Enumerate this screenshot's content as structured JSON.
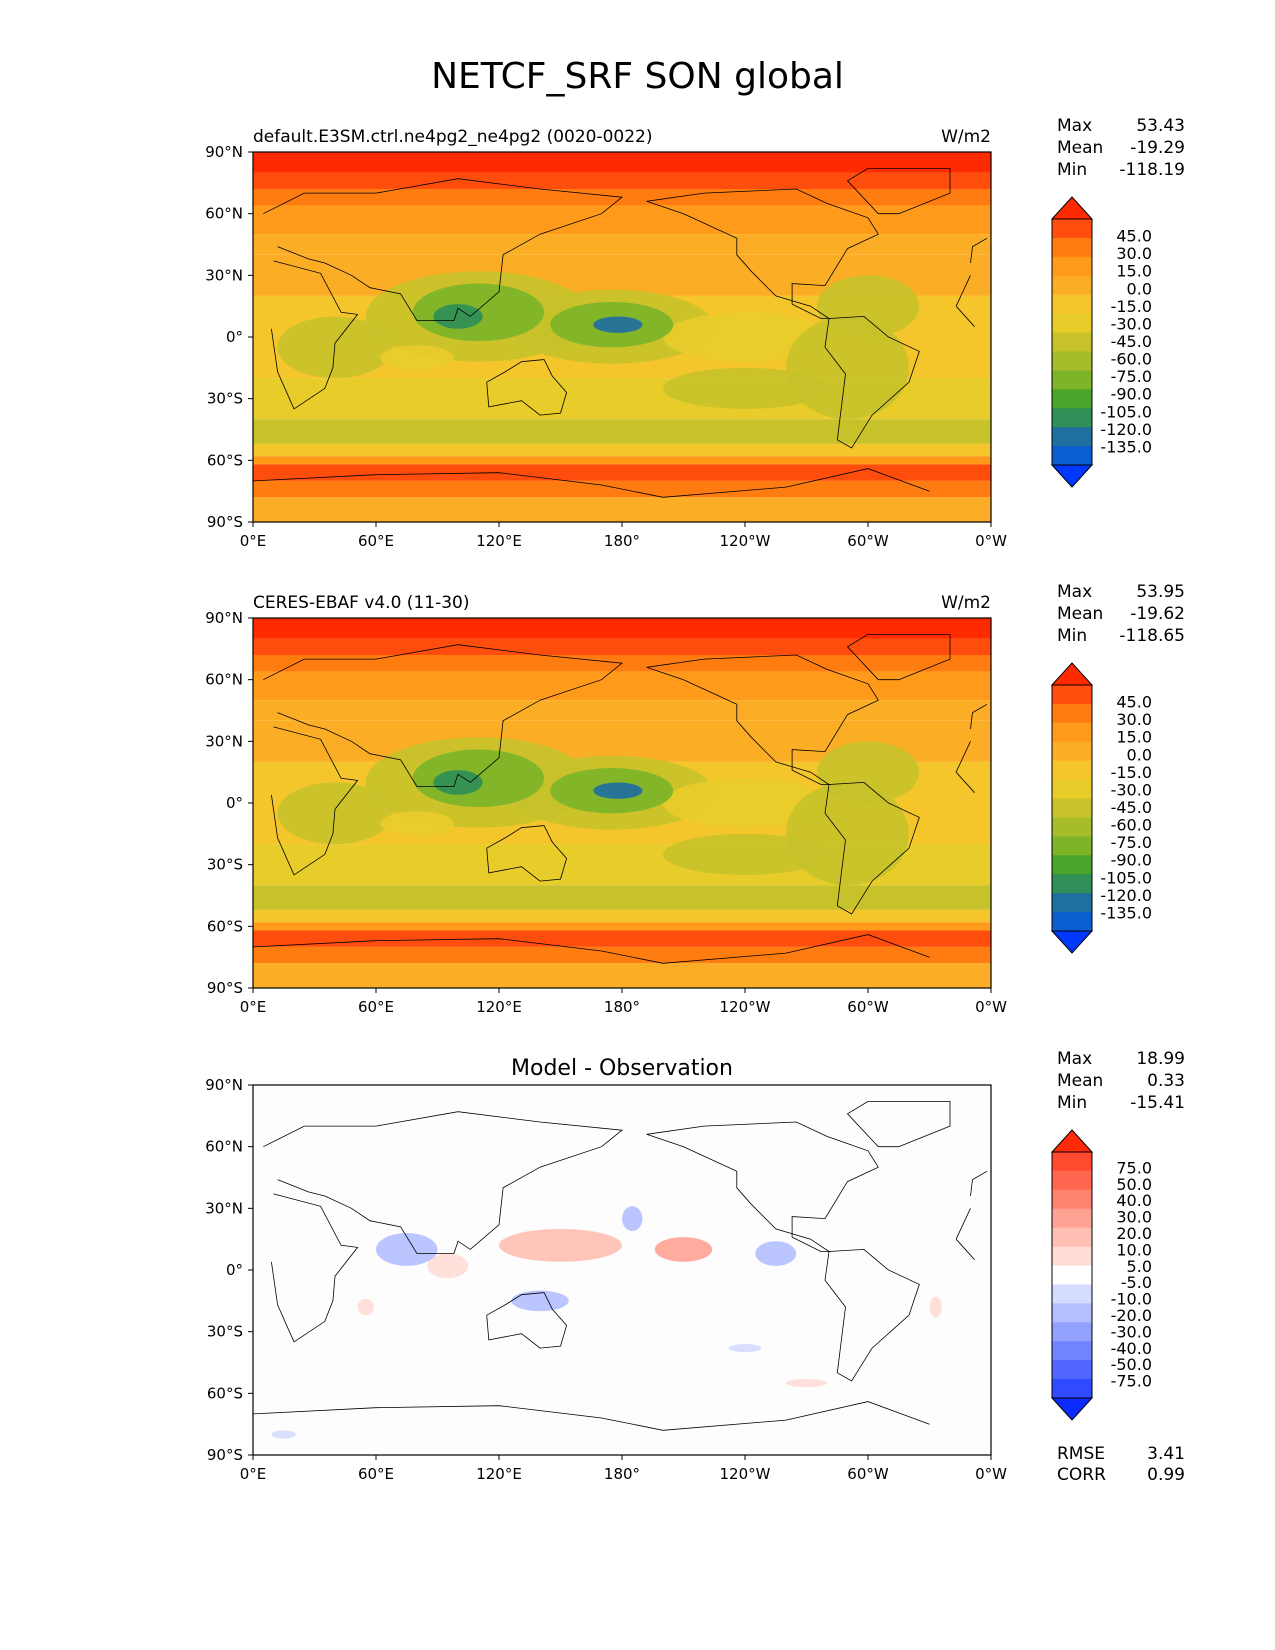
{
  "figure": {
    "title": "NETCF_SRF SON global"
  },
  "lon_ticks": [
    "0°E",
    "60°E",
    "120°E",
    "180°",
    "120°W",
    "60°W",
    "0°W"
  ],
  "lat_ticks": [
    "90°N",
    "60°N",
    "30°N",
    "0°",
    "30°S",
    "60°S",
    "90°S"
  ],
  "panels": [
    {
      "left_title": "default.E3SM.ctrl.ne4pg2_ne4pg2 (0020-0022)",
      "center_title": "",
      "units": "W/m2",
      "stats": [
        {
          "label": "Max",
          "value": "53.43"
        },
        {
          "label": "Mean",
          "value": "-19.29"
        },
        {
          "label": "Min",
          "value": "-118.19"
        }
      ],
      "colorbar_levels": [
        "45.0",
        "30.0",
        "15.0",
        "0.0",
        "-15.0",
        "-30.0",
        "-45.0",
        "-60.0",
        "-75.0",
        "-90.0",
        "-105.0",
        "-120.0",
        "-135.0"
      ],
      "colorbar_colors": [
        "#ff2a00",
        "#ff4d0d",
        "#ff7d10",
        "#ff9a1a",
        "#fbae25",
        "#f5c62b",
        "#e8cc2a",
        "#c8c22a",
        "#a6bd29",
        "#7db428",
        "#4ba52a",
        "#2f8f57",
        "#1f6fa0",
        "#0b5fd0",
        "#0038ff"
      ],
      "metrics": []
    },
    {
      "left_title": "CERES-EBAF v4.0 (11-30)",
      "center_title": "",
      "units": "W/m2",
      "stats": [
        {
          "label": "Max",
          "value": "53.95"
        },
        {
          "label": "Mean",
          "value": "-19.62"
        },
        {
          "label": "Min",
          "value": "-118.65"
        }
      ],
      "colorbar_levels": [
        "45.0",
        "30.0",
        "15.0",
        "0.0",
        "-15.0",
        "-30.0",
        "-45.0",
        "-60.0",
        "-75.0",
        "-90.0",
        "-105.0",
        "-120.0",
        "-135.0"
      ],
      "colorbar_colors": [
        "#ff2a00",
        "#ff4d0d",
        "#ff7d10",
        "#ff9a1a",
        "#fbae25",
        "#f5c62b",
        "#e8cc2a",
        "#c8c22a",
        "#a6bd29",
        "#7db428",
        "#4ba52a",
        "#2f8f57",
        "#1f6fa0",
        "#0b5fd0",
        "#0038ff"
      ],
      "metrics": []
    },
    {
      "left_title": "",
      "center_title": "Model - Observation",
      "units": "",
      "stats": [
        {
          "label": "Max",
          "value": "18.99"
        },
        {
          "label": "Mean",
          "value": "0.33"
        },
        {
          "label": "Min",
          "value": "-15.41"
        }
      ],
      "colorbar_levels": [
        "75.0",
        "50.0",
        "40.0",
        "30.0",
        "20.0",
        "10.0",
        "5.0",
        "-5.0",
        "-10.0",
        "-20.0",
        "-30.0",
        "-40.0",
        "-50.0",
        "-75.0"
      ],
      "colorbar_colors": [
        "#ff2a0a",
        "#ff4a30",
        "#ff6650",
        "#ff8470",
        "#ffa294",
        "#ffbfb4",
        "#ffdcd6",
        "#ffffff",
        "#d6dcff",
        "#b4bfff",
        "#94a2ff",
        "#7084ff",
        "#5066ff",
        "#304aff",
        "#0a2aff"
      ],
      "metrics": [
        {
          "label": "RMSE",
          "value": "3.41"
        },
        {
          "label": "CORR",
          "value": "0.99"
        }
      ]
    }
  ],
  "chart_data": [
    {
      "type": "heatmap",
      "title": "default.E3SM.ctrl.ne4pg2_ne4pg2 (0020-0022)",
      "units": "W/m2",
      "xlim": [
        0,
        360
      ],
      "ylim": [
        -90,
        90
      ],
      "max": 53.43,
      "mean": -19.29,
      "min": -118.19,
      "levels": [
        -135,
        -120,
        -105,
        -90,
        -75,
        -60,
        -45,
        -30,
        -15,
        0,
        15,
        30,
        45
      ]
    },
    {
      "type": "heatmap",
      "title": "CERES-EBAF v4.0 (11-30)",
      "units": "W/m2",
      "xlim": [
        0,
        360
      ],
      "ylim": [
        -90,
        90
      ],
      "max": 53.95,
      "mean": -19.62,
      "min": -118.65,
      "levels": [
        -135,
        -120,
        -105,
        -90,
        -75,
        -60,
        -45,
        -30,
        -15,
        0,
        15,
        30,
        45
      ]
    },
    {
      "type": "heatmap",
      "title": "Model - Observation",
      "xlim": [
        0,
        360
      ],
      "ylim": [
        -90,
        90
      ],
      "max": 18.99,
      "mean": 0.33,
      "min": -15.41,
      "rmse": 3.41,
      "corr": 0.99,
      "levels": [
        -75,
        -50,
        -40,
        -30,
        -20,
        -10,
        -5,
        5,
        10,
        20,
        30,
        40,
        50,
        75
      ]
    }
  ]
}
